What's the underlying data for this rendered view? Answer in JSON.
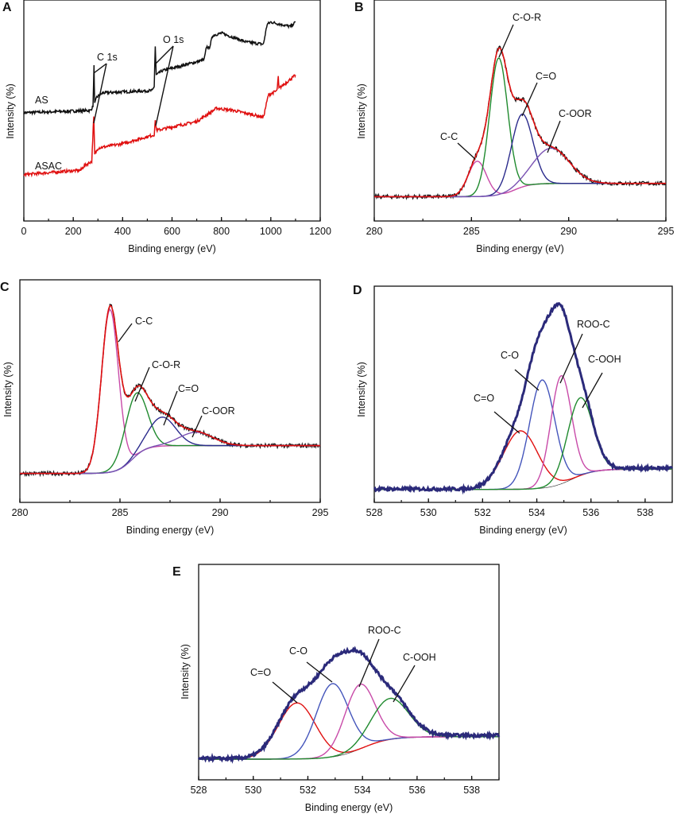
{
  "chart_data": [
    {
      "panel": "A",
      "type": "line",
      "xlabel": "Binding energy (eV)",
      "ylabel": "Intensity (%)",
      "xlim": [
        0,
        1200
      ],
      "ylim": [
        0,
        100
      ],
      "xticks": [
        "0",
        "200",
        "400",
        "600",
        "800",
        "1000",
        "1200"
      ],
      "grid": false,
      "series": [
        {
          "name": "AS",
          "color": "#111111",
          "points": [
            [
              0,
              49
            ],
            [
              270,
              50
            ],
            [
              280,
              52
            ],
            [
              284,
              70
            ],
            [
              287,
              53
            ],
            [
              295,
              56
            ],
            [
              320,
              58
            ],
            [
              520,
              59
            ],
            [
              528,
              61
            ],
            [
              532,
              79
            ],
            [
              536,
              66
            ],
            [
              560,
              68
            ],
            [
              700,
              72
            ],
            [
              730,
              73
            ],
            [
              740,
              79
            ],
            [
              750,
              78
            ],
            [
              765,
              84
            ],
            [
              800,
              85
            ],
            [
              900,
              81
            ],
            [
              970,
              80
            ],
            [
              985,
              89
            ],
            [
              1000,
              90
            ],
            [
              1080,
              88
            ],
            [
              1100,
              90
            ]
          ]
        },
        {
          "name": "ASAC",
          "color": "#e01010",
          "points": [
            [
              0,
              21
            ],
            [
              230,
              23
            ],
            [
              245,
              25
            ],
            [
              275,
              27
            ],
            [
              283,
              47
            ],
            [
              287,
              30
            ],
            [
              300,
              33
            ],
            [
              400,
              35
            ],
            [
              528,
              39
            ],
            [
              532,
              45
            ],
            [
              538,
              41
            ],
            [
              700,
              45
            ],
            [
              740,
              48
            ],
            [
              780,
              51
            ],
            [
              850,
              50
            ],
            [
              970,
              47
            ],
            [
              990,
              57
            ],
            [
              1025,
              59
            ],
            [
              1030,
              65
            ],
            [
              1033,
              60
            ],
            [
              1100,
              66
            ]
          ]
        }
      ],
      "annotations": [
        "C 1s",
        "O 1s"
      ]
    },
    {
      "panel": "B",
      "type": "line",
      "xlabel": "Binding energy (eV)",
      "ylabel": "Intensity (%)",
      "xlim": [
        280,
        295
      ],
      "ylim": [
        0,
        100
      ],
      "xticks": [
        "280",
        "285",
        "290",
        "295"
      ],
      "background": {
        "low": 11,
        "high": 17,
        "center": 287.2,
        "width": 0.9
      },
      "raw_color": "#111111",
      "fit_color": "#e01010",
      "components": [
        {
          "name": "C-C",
          "center": 285.3,
          "height": 16,
          "fwhm": 1.1,
          "color": "#c84aa8"
        },
        {
          "name": "C-O-R",
          "center": 286.4,
          "height": 62,
          "fwhm": 1.1,
          "color": "#1f8a2e"
        },
        {
          "name": "C=O",
          "center": 287.6,
          "height": 33,
          "fwhm": 1.3,
          "color": "#2b2b8c"
        },
        {
          "name": "C-OOR",
          "center": 289.1,
          "height": 16,
          "fwhm": 2.2,
          "color": "#7a52b3"
        }
      ]
    },
    {
      "panel": "C",
      "type": "line",
      "xlabel": "Binding energy (eV)",
      "ylabel": "Intensity (%)",
      "xlim": [
        280,
        295
      ],
      "ylim": [
        0,
        100
      ],
      "xticks": [
        "280",
        "285",
        "290",
        "295"
      ],
      "background": {
        "low": 13,
        "high": 25.5,
        "center": 285.6,
        "width": 0.8
      },
      "raw_color": "#111111",
      "fit_color": "#e01010",
      "components": [
        {
          "name": "C-C",
          "center": 284.5,
          "height": 73,
          "fwhm": 1.0,
          "color": "#c84aa8"
        },
        {
          "name": "C-O-R",
          "center": 285.8,
          "height": 28,
          "fwhm": 1.3,
          "color": "#1f8a2e"
        },
        {
          "name": "C=O",
          "center": 287.1,
          "height": 13,
          "fwhm": 1.6,
          "color": "#2b2b8c"
        },
        {
          "name": "C-OOR",
          "center": 288.8,
          "height": 6,
          "fwhm": 2.0,
          "color": "#7a52b3"
        }
      ]
    },
    {
      "panel": "D",
      "type": "line",
      "xlabel": "Binding energy (eV)",
      "ylabel": "Intensity (%)",
      "xlim": [
        528,
        539
      ],
      "ylim": [
        0,
        100
      ],
      "xticks": [
        "528",
        "530",
        "532",
        "534",
        "536",
        "538"
      ],
      "background": {
        "low": 6,
        "high": 15.4,
        "center": 535.3,
        "width": 0.9
      },
      "raw_color": "#2b2a7a",
      "background_color": "#222222",
      "components": [
        {
          "name": "C=O",
          "center": 533.4,
          "height": 27,
          "fwhm": 1.5,
          "color": "#e01010"
        },
        {
          "name": "C-O",
          "center": 534.2,
          "height": 50,
          "fwhm": 1.1,
          "color": "#4455bb"
        },
        {
          "name": "ROO-C",
          "center": 534.9,
          "height": 50,
          "fwhm": 0.9,
          "color": "#c84aa8"
        },
        {
          "name": "C-OOH",
          "center": 535.6,
          "height": 36,
          "fwhm": 1.1,
          "color": "#1f8a2e"
        }
      ]
    },
    {
      "panel": "E",
      "type": "line",
      "xlabel": "Binding energy (eV)",
      "ylabel": "Intensity (%)",
      "xlim": [
        528,
        539
      ],
      "ylim": [
        0,
        100
      ],
      "xticks": [
        "528",
        "530",
        "532",
        "534",
        "536",
        "538"
      ],
      "background": {
        "low": 9.6,
        "high": 20,
        "center": 534.0,
        "width": 1.1
      },
      "raw_color": "#2b2a7a",
      "background_color": "#222222",
      "components": [
        {
          "name": "C=O",
          "center": 531.6,
          "height": 26,
          "fwhm": 1.6,
          "color": "#e01010"
        },
        {
          "name": "C-O",
          "center": 532.9,
          "height": 34,
          "fwhm": 1.4,
          "color": "#4455bb"
        },
        {
          "name": "ROO-C",
          "center": 533.9,
          "height": 30,
          "fwhm": 1.3,
          "color": "#c84aa8"
        },
        {
          "name": "C-OOH",
          "center": 535.0,
          "height": 19,
          "fwhm": 1.6,
          "color": "#1f8a2e"
        }
      ]
    }
  ]
}
